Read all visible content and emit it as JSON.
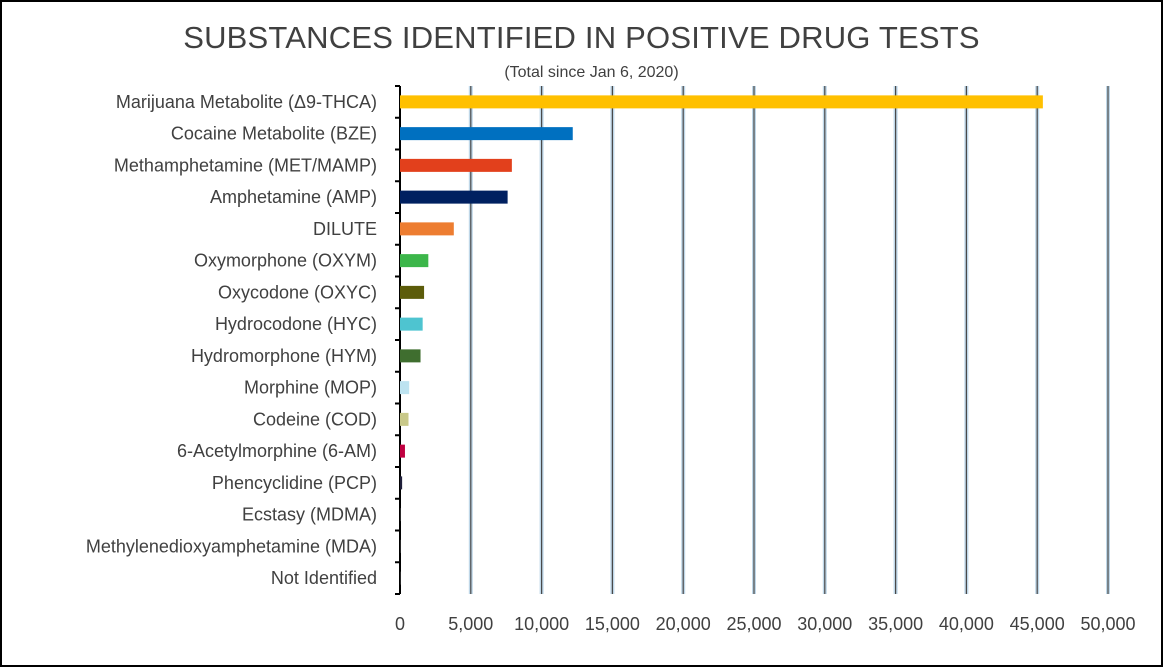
{
  "chart_data": {
    "type": "bar",
    "orientation": "horizontal",
    "title": "SUBSTANCES IDENTIFIED IN POSITIVE DRUG TESTS",
    "subtitle": "(Total since Jan 6, 2020)",
    "xlabel": "",
    "ylabel": "",
    "xlim": [
      0,
      50000
    ],
    "tick_values": [
      0,
      5000,
      10000,
      15000,
      20000,
      25000,
      30000,
      35000,
      40000,
      45000,
      50000
    ],
    "tick_labels": [
      "0",
      "5,000",
      "10,000",
      "15,000",
      "20,000",
      "25,000",
      "30,000",
      "35,000",
      "40,000",
      "45,000",
      "50,000"
    ],
    "grid": "vertical",
    "legend": "none",
    "categories": [
      "Marijuana Metabolite (Δ9-THCA)",
      "Cocaine Metabolite (BZE)",
      "Methamphetamine (MET/MAMP)",
      "Amphetamine (AMP)",
      "DILUTE",
      "Oxymorphone (OXYM)",
      "Oxycodone (OXYC)",
      "Hydrocodone (HYC)",
      "Hydromorphone (HYM)",
      "Morphine (MOP)",
      "Codeine (COD)",
      "6-Acetylmorphine (6-AM)",
      "Phencyclidine (PCP)",
      "Ecstasy (MDMA) ",
      "Methylenedioxyamphetamine (MDA)",
      "Not Identified"
    ],
    "values": [
      45400,
      12200,
      7900,
      7600,
      3800,
      2000,
      1700,
      1600,
      1450,
      650,
      600,
      350,
      150,
      60,
      30,
      10
    ],
    "colors": [
      "#FFC000",
      "#0070C0",
      "#E2401C",
      "#002060",
      "#ED7D31",
      "#3CB64A",
      "#5C5C0A",
      "#4EC4D0",
      "#3F6E2F",
      "#BDE3F0",
      "#C9C98A",
      "#C00040",
      "#1F1F3A",
      "#333333",
      "#333333",
      "#333333"
    ]
  }
}
